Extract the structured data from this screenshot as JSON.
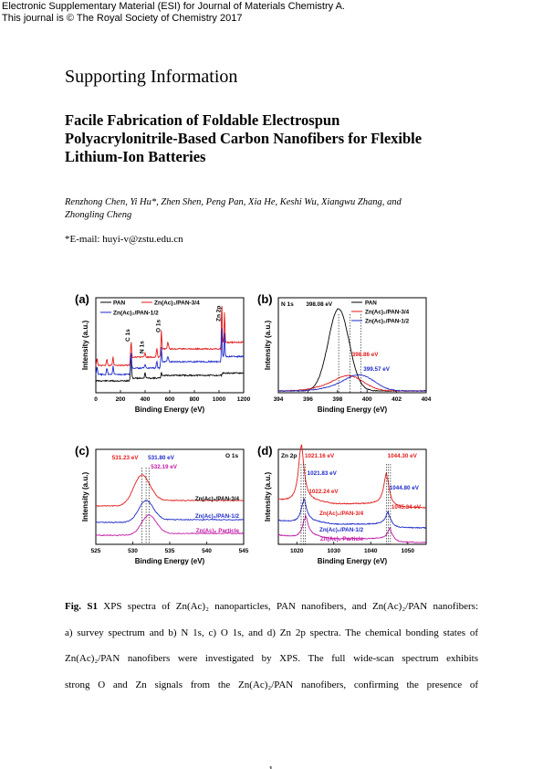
{
  "header": {
    "line1": "Electronic Supplementary Material (ESI) for Journal of Materials Chemistry A.",
    "line2": "This journal is © The Royal Society of Chemistry 2017"
  },
  "supporting_info": "Supporting Information",
  "paper_title": {
    "line1": "Facile Fabrication of Foldable Electrospun",
    "line2": "Polyacrylonitrile-Based Carbon Nanofibers for Flexible",
    "line3": "Lithium-Ion Batteries"
  },
  "authors": {
    "line1": "Renzhong Chen, Yi Hu*, Zhen Shen, Peng Pan, Xia He, Keshi Wu, Xiangwu Zhang, and",
    "line2": "Zhongling Cheng"
  },
  "email": "*E-mail: huyi-v@zstu.edu.cn",
  "caption": {
    "label": "Fig. S1",
    "line1": "XPS spectra of Zn(Ac)₂ nanoparticles, PAN nanofibers, and Zn(Ac)₂/PAN nanofibers:",
    "line2": "a) survey spectrum and b) N 1s, c) O 1s, and d) Zn 2p spectra. The chemical bonding states of",
    "line3": "Zn(Ac)₂/PAN nanofibers were investigated by XPS. The full wide-scan spectrum exhibits",
    "line4": "strong O and Zn signals from the Zn(Ac)₂/PAN nanofibers, confirming the presence of"
  },
  "page_number": "1",
  "colors": {
    "pan": "#000000",
    "pan34": "#e21b1b",
    "pan12": "#1d2ac9",
    "particle": "#c21aa6"
  },
  "chart_data": [
    {
      "panel": "(a)",
      "type": "line",
      "xlabel": "Binding Energy (eV)",
      "ylabel": "Intensity (a.u.)",
      "xlim": [
        0,
        1200
      ],
      "xticks": [
        "0",
        "200",
        "400",
        "600",
        "800",
        "1000",
        "1200"
      ],
      "legend": [
        "PAN",
        "Zn(Ac)₂/PAN-3/4",
        "Zn(Ac)₂/PAN-1/2"
      ],
      "annotations": [
        "C 1s",
        "N 1s",
        "O 1s",
        "Zn 2p"
      ],
      "series": [
        {
          "name": "PAN",
          "color": "#000000"
        },
        {
          "name": "Zn(Ac)₂/PAN-3/4",
          "color": "#e21b1b"
        },
        {
          "name": "Zn(Ac)₂/PAN-1/2",
          "color": "#1d2ac9"
        }
      ]
    },
    {
      "panel": "(b)",
      "type": "line",
      "xlabel": "Binding Energy (eV)",
      "ylabel": "Intensity (a.u.)",
      "title": "N 1s",
      "xlim": [
        394,
        404
      ],
      "xticks": [
        "394",
        "396",
        "398",
        "400",
        "402",
        "404"
      ],
      "legend": [
        "PAN",
        "Zn(Ac)₂/PAN-3/4",
        "Zn(Ac)₂/PAN-1/2"
      ],
      "peak_labels": [
        "398.08 eV",
        "398.86 eV",
        "399.57 eV"
      ],
      "peaks": [
        398.08,
        398.86,
        399.57
      ],
      "series": [
        {
          "name": "PAN",
          "color": "#000000"
        },
        {
          "name": "Zn(Ac)₂/PAN-3/4",
          "color": "#e21b1b"
        },
        {
          "name": "Zn(Ac)₂/PAN-1/2",
          "color": "#1d2ac9"
        }
      ]
    },
    {
      "panel": "(c)",
      "type": "line",
      "xlabel": "Binding Energy (eV)",
      "ylabel": "Intensity (a.u.)",
      "title": "O 1s",
      "xlim": [
        525,
        545
      ],
      "xticks": [
        "525",
        "530",
        "535",
        "540",
        "545"
      ],
      "peak_labels": [
        "531.23 eV",
        "531.80 eV",
        "532.19 eV"
      ],
      "peaks": [
        531.23,
        531.8,
        532.19
      ],
      "curve_labels": [
        "Zn(Ac)₂/PAN-3/4",
        "Zn(Ac)₂/PAN-1/2",
        "Zn(Ac)₂ Particle"
      ],
      "series": [
        {
          "name": "Zn(Ac)₂/PAN-3/4",
          "color": "#e21b1b"
        },
        {
          "name": "Zn(Ac)₂/PAN-1/2",
          "color": "#1d2ac9"
        },
        {
          "name": "Zn(Ac)₂ Particle",
          "color": "#c21aa6"
        }
      ]
    },
    {
      "panel": "(d)",
      "type": "line",
      "xlabel": "Binding Energy (eV)",
      "ylabel": "Intensity (a.u.)",
      "title": "Zn 2p",
      "xlim": [
        1015,
        1055
      ],
      "xticks": [
        "1020",
        "1030",
        "1040",
        "1050"
      ],
      "peak_labels": [
        "1021.16 eV",
        "1021.83 eV",
        "1022.24 eV",
        "1044.30 eV",
        "1044.80 eV",
        "1045.34 eV"
      ],
      "peaks": [
        1021.16,
        1021.83,
        1022.24,
        1044.3,
        1044.8,
        1045.34
      ],
      "curve_labels": [
        "Zn(Ac)₂/PAN-3/4",
        "Zn(Ac)₂/PAN-1/2",
        "Zn(Ac)₂ Particle"
      ],
      "series": [
        {
          "name": "Zn(Ac)₂/PAN-3/4",
          "color": "#e21b1b"
        },
        {
          "name": "Zn(Ac)₂/PAN-1/2",
          "color": "#1d2ac9"
        },
        {
          "name": "Zn(Ac)₂ Particle",
          "color": "#c21aa6"
        }
      ]
    }
  ]
}
